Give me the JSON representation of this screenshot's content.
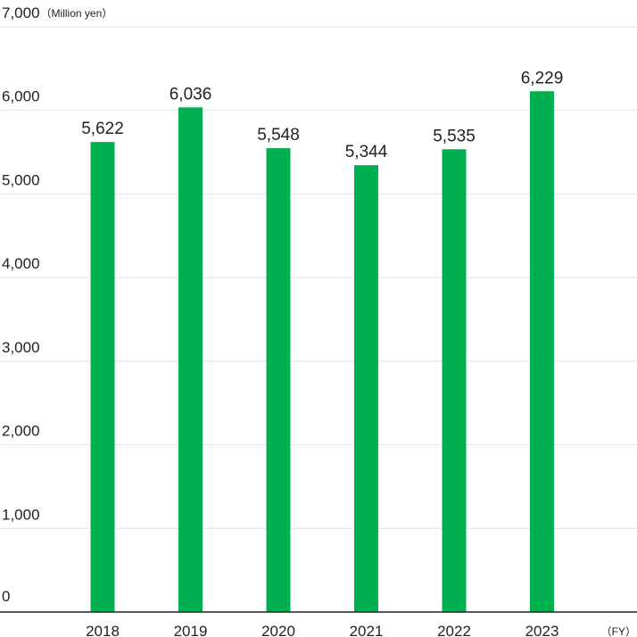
{
  "chart_data": {
    "type": "bar",
    "categories": [
      "2018",
      "2019",
      "2020",
      "2021",
      "2022",
      "2023"
    ],
    "values": [
      5622,
      6036,
      5548,
      5344,
      5535,
      6229
    ],
    "value_labels": [
      "5,622",
      "6,036",
      "5,548",
      "5,344",
      "5,535",
      "6,229"
    ],
    "y_ticks": [
      0,
      1000,
      2000,
      3000,
      4000,
      5000,
      6000,
      7000
    ],
    "y_tick_labels": [
      "0",
      "1,000",
      "2,000",
      "3,000",
      "4,000",
      "5,000",
      "6,000",
      "7,000"
    ],
    "ylim": [
      0,
      7000
    ],
    "y_unit": "（Million yen）",
    "x_unit": "（FY）",
    "title": "",
    "xlabel": "",
    "ylabel": "",
    "grid": true,
    "bar_color": "#00b050",
    "grid_color": "#e3e3e3",
    "axis_color": "#222222"
  }
}
